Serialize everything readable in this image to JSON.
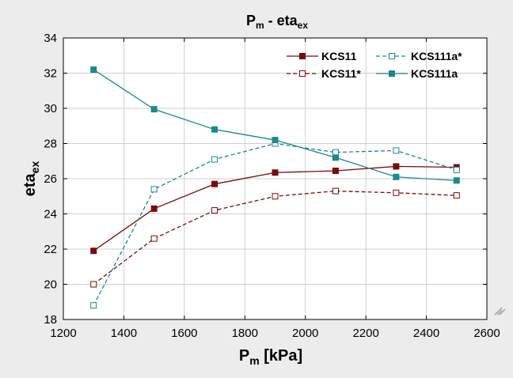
{
  "chart_data": {
    "type": "line",
    "title": {
      "main": "P",
      "sub": "m",
      "suffix": " - eta",
      "suffix_sub": "ex"
    },
    "xlabel": {
      "main": "P",
      "sub": "m",
      "suffix": " [kPa]"
    },
    "ylabel": {
      "main": "eta",
      "sub": "ex"
    },
    "xlim": [
      1200,
      2600
    ],
    "ylim": [
      18,
      34
    ],
    "xticks": [
      1200,
      1400,
      1600,
      1800,
      2000,
      2200,
      2400,
      2600
    ],
    "yticks": [
      18,
      20,
      22,
      24,
      26,
      28,
      30,
      32,
      34
    ],
    "grid": true,
    "legend_position": "top-right",
    "x": [
      1300,
      1500,
      1700,
      1900,
      2100,
      2300,
      2500
    ],
    "series": [
      {
        "name": "KCS11",
        "values": [
          21.9,
          24.3,
          25.7,
          26.35,
          26.45,
          26.7,
          26.65
        ],
        "color": "#7a0a0a",
        "dashed": false,
        "filled": true
      },
      {
        "name": "KCS11*",
        "values": [
          20.0,
          22.6,
          24.2,
          25.0,
          25.3,
          25.2,
          25.05
        ],
        "color": "#7a0a0a",
        "dashed": true,
        "filled": false
      },
      {
        "name": "KCS111a*",
        "values": [
          18.8,
          25.4,
          27.1,
          28.0,
          27.5,
          27.6,
          26.5
        ],
        "color": "#1a8a8a",
        "dashed": true,
        "filled": false
      },
      {
        "name": "KCS111a",
        "values": [
          32.2,
          29.95,
          28.8,
          28.2,
          27.2,
          26.1,
          25.9
        ],
        "color": "#1a8a8a",
        "dashed": false,
        "filled": true
      }
    ]
  }
}
